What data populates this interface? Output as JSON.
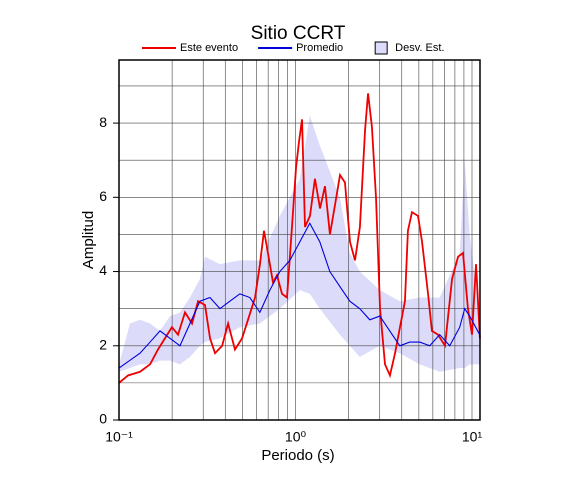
{
  "chart_data": {
    "type": "line",
    "title": "Sitio CCRT",
    "x_label": "Periodo (s)",
    "y_label": "Amplitud",
    "x_log": true,
    "xlim": [
      0.1,
      11.1
    ],
    "ylim": [
      0,
      9.7
    ],
    "xticks": [
      {
        "value": 0.1,
        "label": "10⁻¹"
      },
      {
        "value": 1,
        "label": "10⁰"
      },
      {
        "value": 10,
        "label": "10¹"
      }
    ],
    "xgrid": [
      0.2,
      0.3,
      0.4,
      0.5,
      0.6,
      0.7,
      0.8,
      0.9,
      2,
      3,
      4,
      5,
      6,
      7,
      8,
      9
    ],
    "yticks": [
      0,
      2,
      4,
      6,
      8
    ],
    "ygrid": [
      1,
      3,
      5,
      7,
      9
    ],
    "grid": true,
    "legend": "top",
    "series": [
      {
        "name": "Este evento",
        "color": "#ee0000",
        "x": [
          0.1,
          0.1125,
          0.1315,
          0.15,
          0.1663,
          0.182,
          0.1995,
          0.216,
          0.2366,
          0.2593,
          0.2805,
          0.307,
          0.328,
          0.35,
          0.384,
          0.415,
          0.454,
          0.498,
          0.538,
          0.59,
          0.629,
          0.663,
          0.698,
          0.746,
          0.785,
          0.839,
          0.895,
          0.955,
          1.007,
          1.047,
          1.089,
          1.132,
          1.208,
          1.289,
          1.377,
          1.469,
          1.567,
          1.675,
          1.787,
          1.906,
          2.036,
          2.173,
          2.317,
          2.477,
          2.576,
          2.71,
          2.858,
          3.013,
          3.214,
          3.428,
          3.664,
          3.908,
          4.169,
          4.335,
          4.571,
          4.943,
          5.212,
          5.636,
          5.929,
          6.412,
          7.031,
          7.709,
          8.337,
          8.892,
          9.484,
          10.0,
          10.54,
          11.09
        ],
        "values": [
          1.0,
          1.2,
          1.3,
          1.5,
          1.9,
          2.2,
          2.5,
          2.3,
          2.9,
          2.6,
          3.2,
          3.1,
          2.2,
          1.8,
          2.0,
          2.6,
          1.9,
          2.2,
          2.7,
          3.3,
          4.2,
          5.1,
          4.5,
          3.7,
          3.9,
          3.4,
          3.3,
          5.2,
          6.8,
          7.5,
          8.1,
          5.2,
          5.5,
          6.5,
          5.7,
          6.3,
          5.0,
          5.8,
          6.6,
          6.4,
          4.8,
          4.3,
          5.2,
          7.8,
          8.8,
          7.9,
          6.0,
          3.0,
          1.5,
          1.2,
          1.8,
          2.5,
          3.2,
          5.1,
          5.6,
          5.5,
          4.8,
          3.4,
          2.4,
          2.3,
          2.0,
          3.8,
          4.4,
          4.5,
          3.0,
          2.3,
          4.2,
          2.2
        ]
      },
      {
        "name": "Promedio",
        "color": "#0000dd",
        "x": [
          0.1,
          0.1315,
          0.15,
          0.1707,
          0.1944,
          0.2216,
          0.2525,
          0.2873,
          0.3275,
          0.373,
          0.4248,
          0.484,
          0.5513,
          0.6282,
          0.7156,
          0.8153,
          0.9289,
          1.058,
          1.205,
          1.373,
          1.565,
          1.783,
          2.031,
          2.313,
          2.636,
          3.003,
          3.421,
          3.897,
          4.44,
          5.06,
          5.76,
          6.56,
          7.48,
          8.52,
          9.09,
          9.7,
          11.05
        ],
        "values": [
          1.4,
          1.8,
          2.1,
          2.4,
          2.2,
          2.0,
          2.6,
          3.2,
          3.3,
          3.0,
          3.2,
          3.4,
          3.3,
          2.9,
          3.5,
          4.0,
          4.3,
          4.8,
          5.3,
          4.8,
          4.0,
          3.6,
          3.2,
          3.0,
          2.7,
          2.8,
          2.4,
          2.0,
          2.1,
          2.1,
          2.0,
          2.3,
          2.0,
          2.5,
          3.0,
          2.8,
          2.3
        ]
      },
      {
        "name": "Desv. Est.",
        "color": "#dcdcfa",
        "x": [
          0.1,
          0.1154,
          0.1315,
          0.15,
          0.1707,
          0.1944,
          0.2216,
          0.2525,
          0.2873,
          0.307,
          0.373,
          0.484,
          0.6282,
          0.8153,
          1.058,
          1.205,
          1.373,
          1.783,
          2.031,
          2.313,
          3.003,
          3.897,
          5.06,
          6.56,
          8.52,
          9.09,
          9.7,
          11.05
        ],
        "lower": [
          1.3,
          1.4,
          1.5,
          1.5,
          1.6,
          1.6,
          1.5,
          1.7,
          2.0,
          2.1,
          2.2,
          2.5,
          2.6,
          3.0,
          3.5,
          3.4,
          3.0,
          2.3,
          2.0,
          1.7,
          2.0,
          1.8,
          1.5,
          1.3,
          1.4,
          1.4,
          1.5,
          1.5
        ],
        "upper": [
          1.5,
          2.6,
          2.7,
          2.6,
          2.4,
          2.8,
          2.9,
          3.3,
          3.8,
          4.4,
          4.2,
          4.3,
          4.3,
          5.5,
          6.5,
          8.2,
          7.4,
          6.0,
          4.5,
          4.0,
          3.5,
          3.2,
          3.3,
          3.3,
          4.5,
          7.0,
          5.0,
          2.8
        ]
      }
    ]
  }
}
